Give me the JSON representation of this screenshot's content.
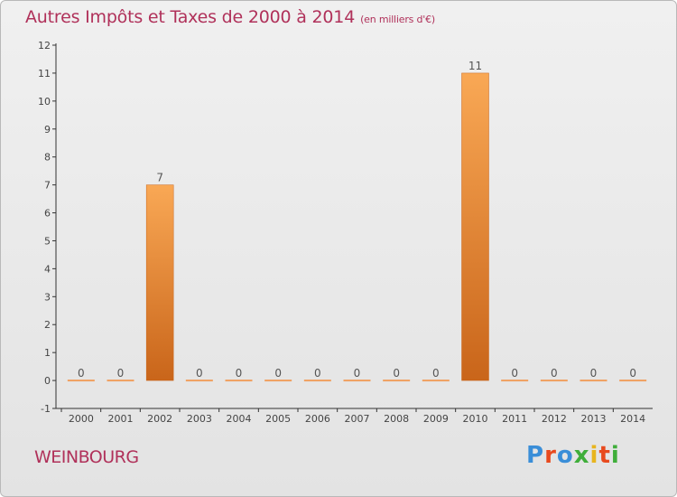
{
  "title": "Autres Impôts et Taxes de 2000 à 2014",
  "title_unit": "(en milliers d'€)",
  "commune": "WEINBOURG",
  "logo": {
    "text": "Proxiti",
    "colors": [
      "#3a8ed8",
      "#e84a1e",
      "#3a8ed8",
      "#3fae3a",
      "#e8b51e",
      "#e84a1e",
      "#3fae3a"
    ]
  },
  "chart_data": {
    "type": "bar",
    "categories": [
      "2000",
      "2001",
      "2002",
      "2003",
      "2004",
      "2005",
      "2006",
      "2007",
      "2008",
      "2009",
      "2010",
      "2011",
      "2012",
      "2013",
      "2014"
    ],
    "values": [
      0,
      0,
      7,
      0,
      0,
      0,
      0,
      0,
      0,
      0,
      11,
      0,
      0,
      0,
      0
    ],
    "ylim": [
      -1,
      12
    ],
    "yticks": [
      -1,
      0,
      1,
      2,
      3,
      4,
      5,
      6,
      7,
      8,
      9,
      10,
      11,
      12
    ],
    "bar_color": "#e8822a",
    "grid": false,
    "data_labels": true
  }
}
